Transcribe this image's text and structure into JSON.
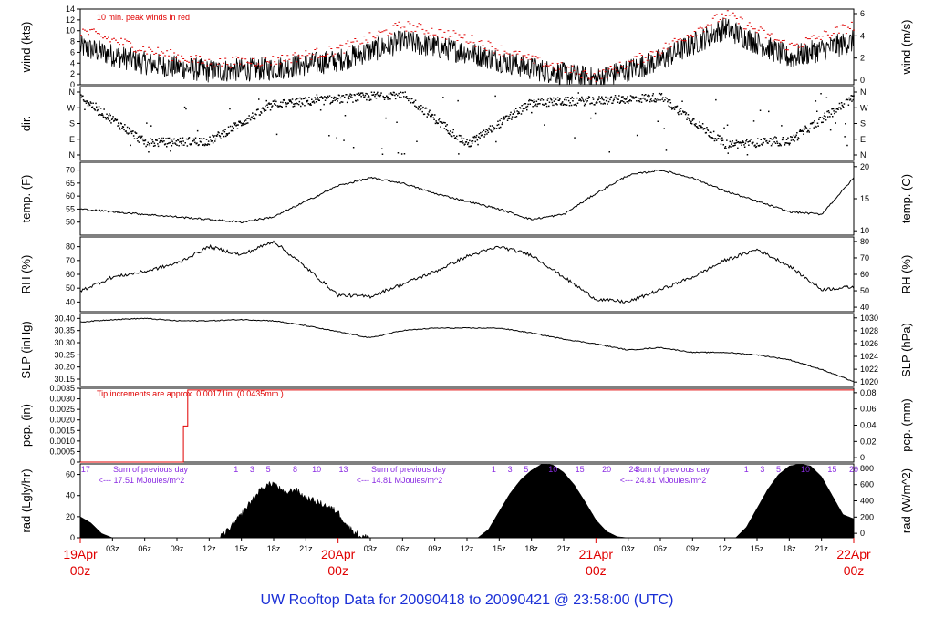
{
  "footer_title": "UW Rooftop Data for 20090418  to  20090421 @ 23:58:00  (UTC)",
  "colors": {
    "trace": "#000000",
    "peak": "#e00000",
    "radiation_label": "#8a2be2",
    "date_label": "#e00000",
    "title": "#1a2fd6"
  },
  "chart_data": [
    {
      "type": "line",
      "panel": "wind",
      "ylabel": "wind (kts)",
      "ylabel_right": "wind (m/s)",
      "ylim": [
        0,
        14
      ],
      "yticks": [
        0,
        2,
        4,
        6,
        8,
        10,
        12,
        14
      ],
      "yticks_right": [
        "0",
        "2",
        "4",
        "6"
      ],
      "annotation": "10 min. peak winds in red",
      "x_hours": [
        0,
        6,
        12,
        18,
        24,
        30,
        36,
        42,
        48,
        54,
        60,
        66,
        72
      ],
      "series": [
        {
          "values": [
            7.0,
            4.0,
            2.5,
            3.0,
            4.5,
            8.0,
            6.0,
            3.0,
            1.0,
            4.5,
            10.5,
            5.0,
            8.0
          ]
        }
      ],
      "peak_series": [
        {
          "values": [
            10.0,
            6.5,
            4.0,
            4.5,
            6.5,
            11.0,
            8.5,
            4.5,
            1.5,
            6.5,
            13.0,
            7.0,
            11.0
          ]
        }
      ]
    },
    {
      "type": "scatter",
      "panel": "direction",
      "ylabel": "dir.",
      "yticks": [
        "N",
        "E",
        "S",
        "W",
        "N"
      ],
      "ylim": [
        0,
        360
      ],
      "x_hours": [
        0,
        6,
        12,
        18,
        24,
        30,
        36,
        42,
        48,
        54,
        60,
        66,
        72
      ],
      "series": [
        {
          "values": [
            330,
            70,
            80,
            290,
            320,
            350,
            60,
            300,
            310,
            330,
            60,
            80,
            330
          ]
        }
      ]
    },
    {
      "type": "line",
      "panel": "temperature",
      "ylabel": "temp. (F)",
      "ylabel_right": "temp. (C)",
      "ylim": [
        45,
        73
      ],
      "yticks": [
        50,
        55,
        60,
        65,
        70
      ],
      "yticks_right": [
        "10",
        "15",
        "20"
      ],
      "x_hours": [
        0,
        3,
        6,
        9,
        12,
        15,
        18,
        21,
        24,
        27,
        30,
        33,
        36,
        39,
        42,
        45,
        48,
        51,
        54,
        57,
        60,
        63,
        66,
        69,
        72
      ],
      "series": [
        {
          "values": [
            55,
            54,
            53,
            52,
            51,
            50,
            52,
            58,
            64,
            67,
            65,
            61,
            58,
            55,
            51,
            53,
            61,
            68,
            70,
            67,
            62,
            58,
            54,
            53,
            67
          ]
        }
      ]
    },
    {
      "type": "line",
      "panel": "relative_humidity",
      "ylabel": "RH (%)",
      "ylabel_right": "RH (%)",
      "ylim": [
        33,
        87
      ],
      "yticks": [
        40,
        50,
        60,
        70,
        80
      ],
      "yticks_right": [
        "40",
        "50",
        "60",
        "70",
        "80"
      ],
      "x_hours": [
        0,
        3,
        6,
        9,
        12,
        15,
        18,
        21,
        24,
        27,
        30,
        33,
        36,
        39,
        42,
        45,
        48,
        51,
        54,
        57,
        60,
        63,
        66,
        69,
        72
      ],
      "series": [
        {
          "values": [
            48,
            58,
            62,
            68,
            80,
            74,
            84,
            65,
            45,
            44,
            53,
            62,
            73,
            80,
            74,
            58,
            42,
            40,
            49,
            58,
            70,
            78,
            66,
            49,
            51
          ]
        }
      ]
    },
    {
      "type": "line",
      "panel": "sea_level_pressure",
      "ylabel": "SLP (inHg)",
      "ylabel_right": "SLP (hPa)",
      "ylim": [
        30.12,
        30.42
      ],
      "yticks": [
        30.15,
        30.2,
        30.25,
        30.3,
        30.35,
        30.4
      ],
      "yticks_right": [
        "1020",
        "1022",
        "1024",
        "1026",
        "1028",
        "1030"
      ],
      "x_hours": [
        0,
        3,
        6,
        9,
        12,
        15,
        18,
        21,
        24,
        27,
        30,
        33,
        36,
        39,
        42,
        45,
        48,
        51,
        54,
        57,
        60,
        63,
        66,
        69,
        72
      ],
      "series": [
        {
          "values": [
            30.385,
            30.395,
            30.4,
            30.39,
            30.39,
            30.395,
            30.39,
            30.37,
            30.345,
            30.32,
            30.35,
            30.36,
            30.36,
            30.36,
            30.34,
            30.315,
            30.295,
            30.27,
            30.28,
            30.26,
            30.26,
            30.25,
            30.23,
            30.19,
            30.14
          ]
        }
      ]
    },
    {
      "type": "line",
      "panel": "precipitation",
      "ylabel": "pcp. (in)",
      "ylabel_right": "pcp. (mm)",
      "ylim": [
        0,
        0.0035
      ],
      "yticks": [
        0,
        0.0005,
        0.001,
        0.0015,
        0.002,
        0.0025,
        0.003,
        0.0035
      ],
      "yticks_right": [
        "0",
        "0.02",
        "0.04",
        "0.06",
        "0.08"
      ],
      "annotation": "Tip increments are approx. 0.00171in. (0.0435mm.)",
      "x_hours": [
        0,
        9.5,
        9.6,
        9.8,
        10,
        72
      ],
      "series": [
        {
          "values": [
            0,
            0,
            0.00171,
            0.00171,
            0.00342,
            0.00342
          ]
        }
      ]
    },
    {
      "type": "area",
      "panel": "solar_radiation",
      "ylabel": "rad (Lgly/hr)",
      "ylabel_right": "rad (W/m^2)",
      "ylim": [
        0,
        70
      ],
      "yticks": [
        0,
        20,
        40,
        60
      ],
      "yticks_right": [
        "0",
        "200",
        "400",
        "600",
        "800"
      ],
      "annotations": [
        {
          "line1": "Sum of previous day",
          "line2": "<--- 17.51 MJoules/m^2"
        },
        {
          "line1": "Sum of previous day",
          "line2": "<--- 14.81 MJoules/m^2"
        },
        {
          "line1": "Sum of previous day",
          "line2": "<--- 24.81 MJoules/m^2"
        }
      ],
      "hour_markers": [
        "17",
        "1",
        "3",
        "5",
        "8",
        "10",
        "13",
        "1",
        "3",
        "5",
        "10",
        "15",
        "20",
        "24",
        "1",
        "3",
        "5",
        "10",
        "15",
        "20"
      ],
      "x_hours": [
        0,
        1,
        2,
        3,
        13,
        14,
        15,
        16,
        17,
        18,
        19,
        20,
        21,
        22,
        23,
        24,
        25,
        26,
        27,
        37,
        38,
        39,
        40,
        41,
        42,
        43,
        44,
        45,
        46,
        47,
        48,
        49,
        50,
        51,
        61,
        62,
        63,
        64,
        65,
        66,
        67,
        68,
        69,
        70,
        71,
        72
      ],
      "series": [
        {
          "values": [
            20,
            14,
            4,
            0,
            0,
            10,
            22,
            36,
            48,
            52,
            42,
            46,
            38,
            34,
            30,
            24,
            10,
            2,
            0,
            0,
            8,
            25,
            42,
            55,
            64,
            70,
            69,
            62,
            50,
            34,
            17,
            6,
            1,
            0,
            0,
            10,
            28,
            46,
            60,
            68,
            70,
            68,
            58,
            40,
            22,
            18
          ]
        }
      ]
    }
  ],
  "x_axis": {
    "hour_ticks": [
      "03z",
      "06z",
      "09z",
      "12z",
      "15z",
      "18z",
      "21z",
      "03z",
      "06z",
      "09z",
      "12z",
      "15z",
      "18z",
      "21z",
      "03z",
      "06z",
      "09z",
      "12z",
      "15z",
      "18z",
      "21z"
    ],
    "day_labels": [
      {
        "date": "19Apr",
        "time": "00z"
      },
      {
        "date": "20Apr",
        "time": "00z"
      },
      {
        "date": "21Apr",
        "time": "00z"
      },
      {
        "date": "22Apr",
        "time": "00z"
      }
    ]
  }
}
